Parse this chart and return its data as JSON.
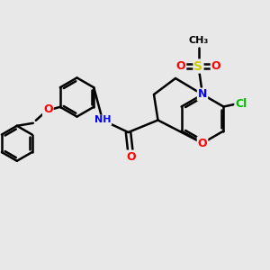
{
  "bg_color": "#e8e8e8",
  "bond_color": "#000000",
  "bond_width": 1.8,
  "atom_colors": {
    "N": "#0000ff",
    "O": "#ff0000",
    "S": "#cccc00",
    "Cl": "#00bb00",
    "C": "#000000",
    "H": "#888888"
  },
  "font_size": 8,
  "fig_size": [
    3.0,
    3.0
  ],
  "dpi": 100
}
